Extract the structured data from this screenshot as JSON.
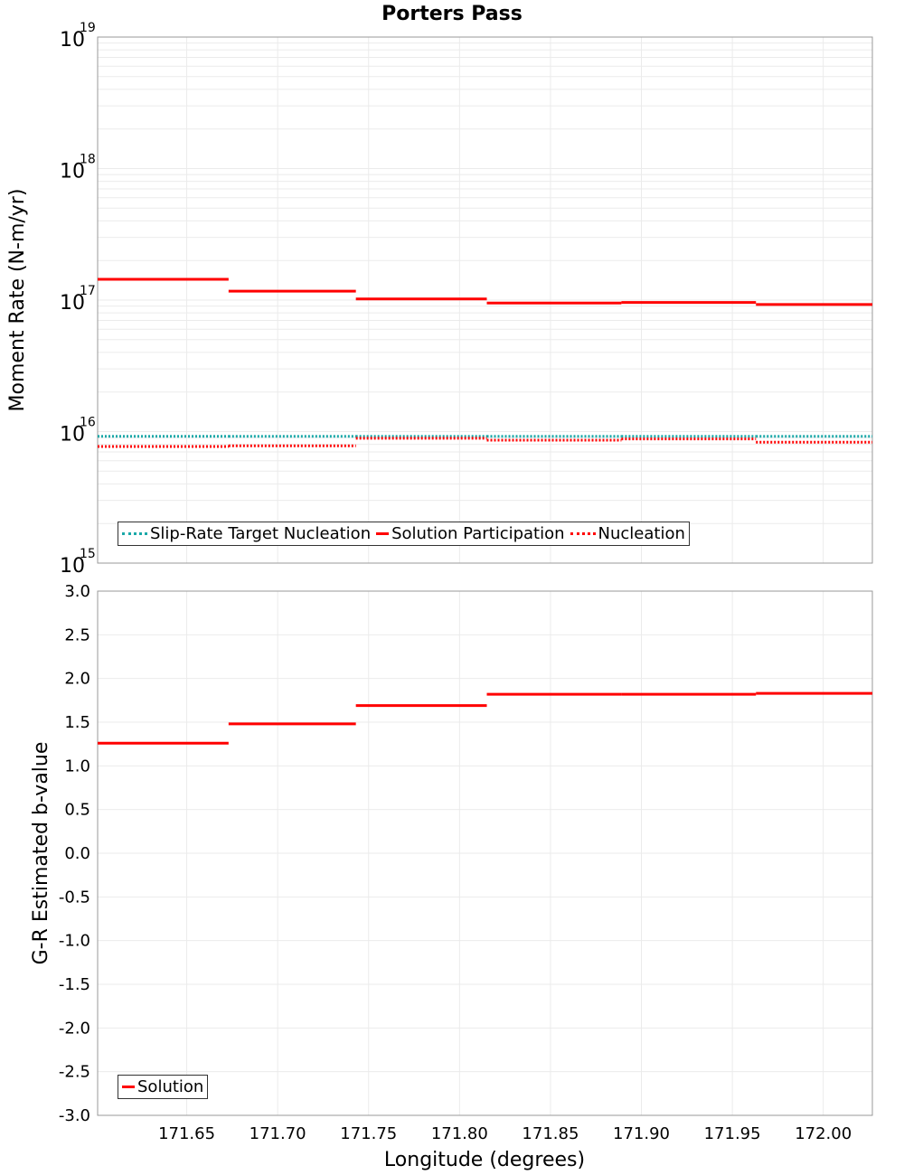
{
  "chart_data": [
    {
      "type": "line",
      "title": "Porters Pass",
      "ylabel": "Moment Rate (N-m/yr)",
      "yscale": "log",
      "ylim": [
        1000000000000000.0,
        1e+19
      ],
      "ytick_labels": [
        {
          "base": "10",
          "exp": "15"
        },
        {
          "base": "10",
          "exp": "16"
        },
        {
          "base": "10",
          "exp": "17"
        },
        {
          "base": "10",
          "exp": "18"
        },
        {
          "base": "10",
          "exp": "19"
        }
      ],
      "xlim": [
        171.601,
        172.027
      ],
      "bin_edges": [
        171.601,
        171.673,
        171.743,
        171.815,
        171.889,
        171.963,
        172.027
      ],
      "series": [
        {
          "name": "Slip-Rate Target Nucleation",
          "color": "#1aa8a8",
          "style": "dotted",
          "values": [
            9200000000000000.0,
            9200000000000000.0,
            9200000000000000.0,
            9200000000000000.0,
            9200000000000000.0,
            9200000000000000.0
          ]
        },
        {
          "name": "Solution Participation",
          "color": "#ff0000",
          "style": "solid",
          "values": [
            1.44e+17,
            1.17e+17,
            1.02e+17,
            9.5e+16,
            9.6e+16,
            9.25e+16
          ]
        },
        {
          "name": "Nucleation",
          "color": "#ff0000",
          "style": "dotted",
          "values": [
            7700000000000000.0,
            7800000000000000.0,
            8900000000000000.0,
            8600000000000000.0,
            8800000000000000.0,
            8300000000000000.0
          ]
        }
      ],
      "legend": "bottom-left",
      "grid": true
    },
    {
      "type": "line",
      "ylabel": "G-R Estimated b-value",
      "xlabel": "Longitude (degrees)",
      "ylim": [
        -3,
        3
      ],
      "yticks": [
        "3.0",
        "2.5",
        "2.0",
        "1.5",
        "1.0",
        "0.5",
        "0.0",
        "-0.5",
        "-1.0",
        "-1.5",
        "-2.0",
        "-2.5",
        "-3.0"
      ],
      "xticks": [
        "171.65",
        "171.70",
        "171.75",
        "171.80",
        "171.85",
        "171.90",
        "171.95",
        "172.00"
      ],
      "xlim": [
        171.601,
        172.027
      ],
      "bin_edges": [
        171.601,
        171.673,
        171.743,
        171.815,
        171.889,
        171.963,
        172.027
      ],
      "series": [
        {
          "name": "Solution",
          "color": "#ff0000",
          "style": "solid",
          "values": [
            1.26,
            1.48,
            1.69,
            1.82,
            1.82,
            1.83
          ]
        }
      ],
      "legend": "bottom-left",
      "grid": true
    }
  ]
}
